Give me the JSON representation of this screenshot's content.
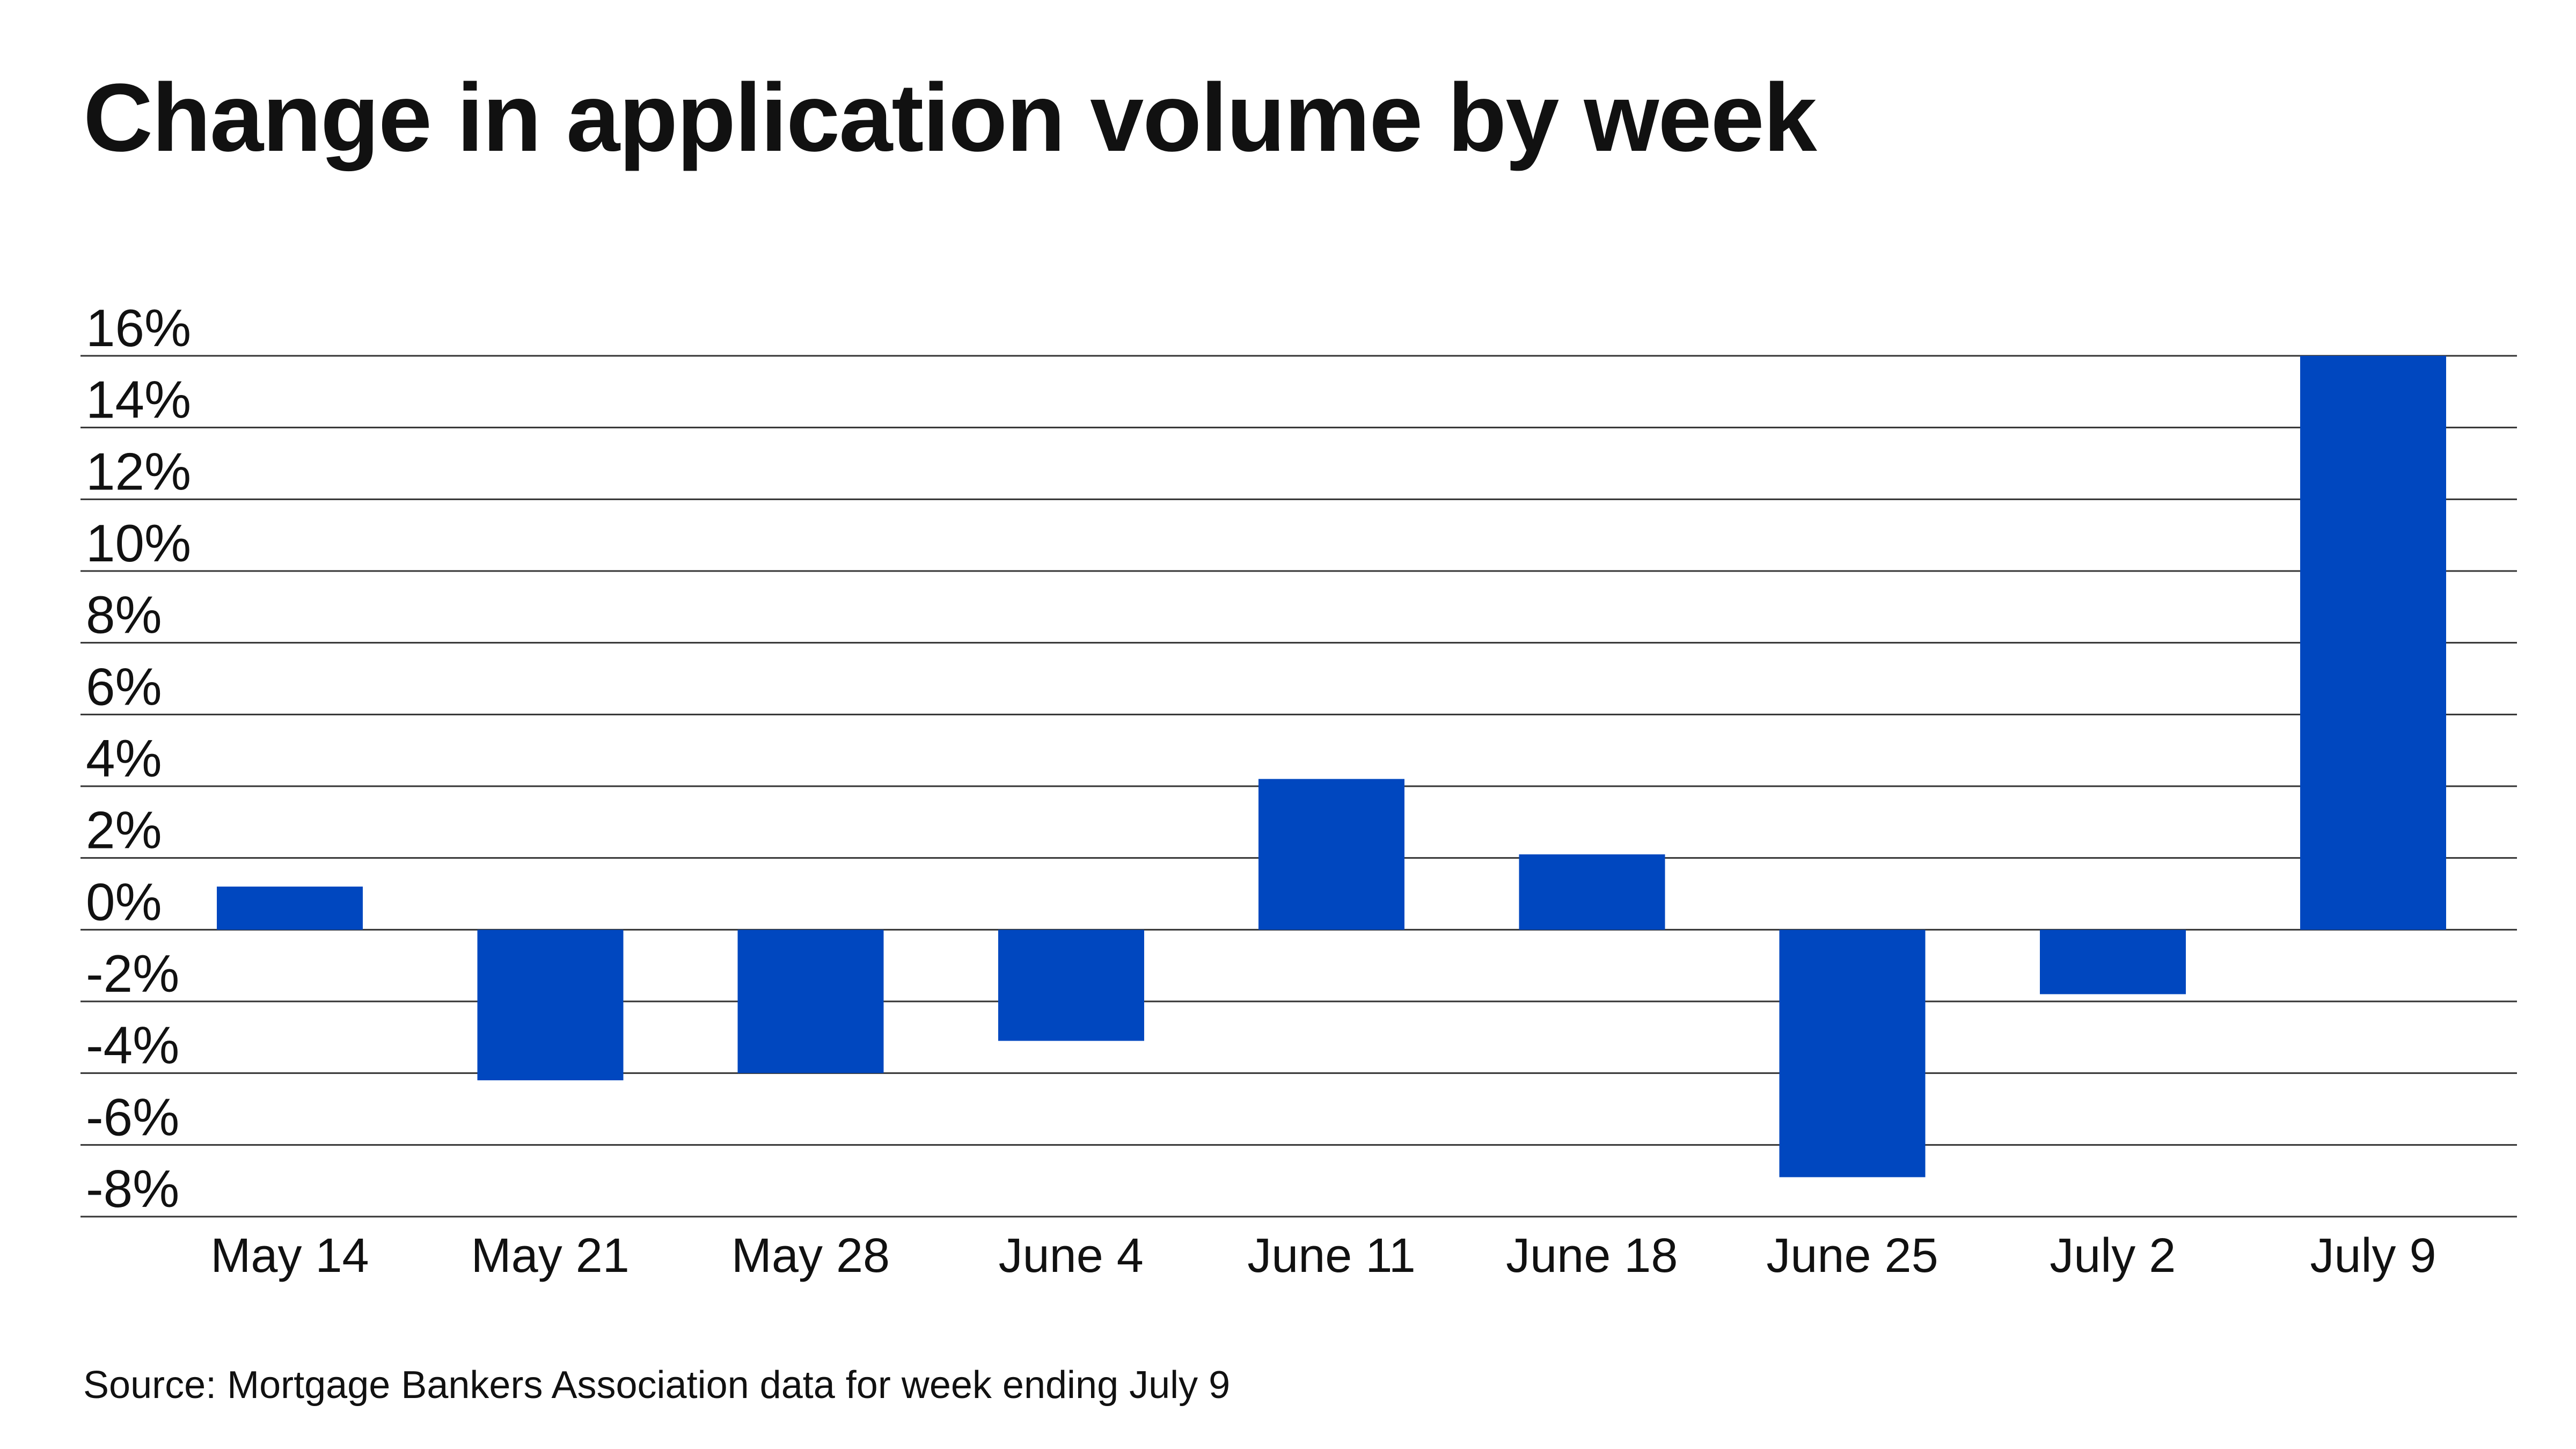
{
  "colors": {
    "bar": "#0047BF",
    "grid": "#333333",
    "text": "#111111",
    "background": "#FFFFFF"
  },
  "chart_data": {
    "type": "bar",
    "title": "Change in application volume by week",
    "xlabel": "",
    "ylabel": "",
    "categories": [
      "May 14",
      "May 21",
      "May 28",
      "June 4",
      "June 11",
      "June 18",
      "June 25",
      "July 2",
      "July 9"
    ],
    "values": [
      1.2,
      -4.2,
      -4.0,
      -3.1,
      4.2,
      2.1,
      -6.9,
      -1.8,
      16.0
    ],
    "ylim": [
      -8,
      16
    ],
    "yticks": [
      16,
      14,
      12,
      10,
      8,
      6,
      4,
      2,
      0,
      -2,
      -4,
      -6,
      -8
    ],
    "ytick_labels": [
      "16%",
      "14%",
      "12%",
      "10%",
      "8%",
      "6%",
      "4%",
      "2%",
      "0%",
      "-2%",
      "-4%",
      "-6%",
      "-8%"
    ],
    "grid": true,
    "legend": "none",
    "source": "Source: Mortgage Bankers Association data for week ending July 9"
  }
}
